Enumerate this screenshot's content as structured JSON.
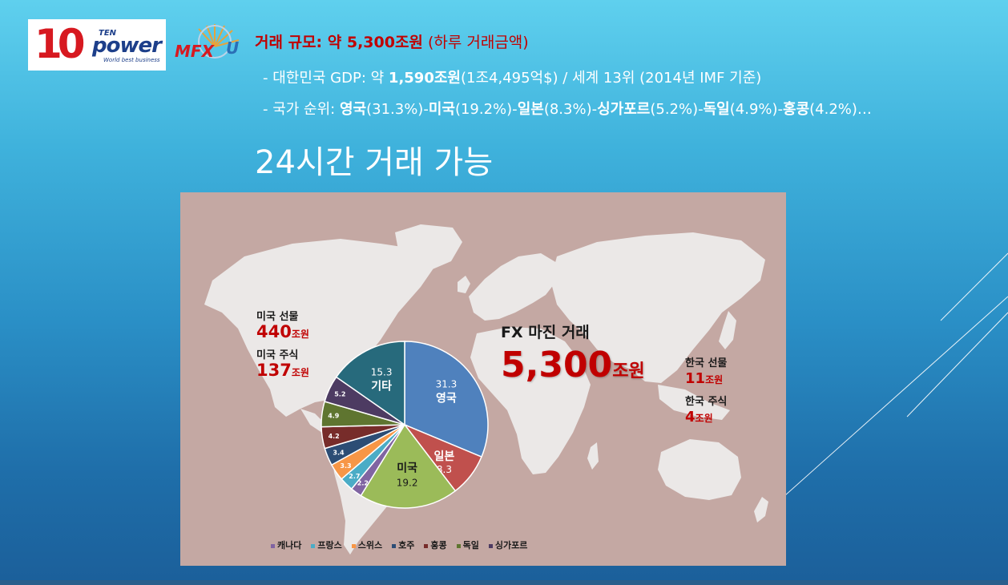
{
  "logos": {
    "ten_power": {
      "ten": "10",
      "ten_small": "TEN",
      "power": "power",
      "tagline": "World best business"
    },
    "mfx": {
      "text": "MFX",
      "suffix": "U"
    }
  },
  "header": {
    "line1_label": "거래 규모: 약 5,300조원",
    "line1_paren": " (하루 거래금액)",
    "line2_pre": "- 대한민국 GDP: 약 ",
    "line2_bold": "1,590조원",
    "line2_post": "(1조4,495억$) / 세계 13위 (2014년 IMF 기준)",
    "line3": [
      {
        "text": "- 국가 순위: ",
        "bold": false
      },
      {
        "text": "영국",
        "bold": true
      },
      {
        "text": "(31.3%)-",
        "bold": false
      },
      {
        "text": "미국",
        "bold": true
      },
      {
        "text": "(19.2%)-",
        "bold": false
      },
      {
        "text": "일본",
        "bold": true
      },
      {
        "text": "(8.3%)-",
        "bold": false
      },
      {
        "text": "싱가포르",
        "bold": true
      },
      {
        "text": "(5.2%)-",
        "bold": false
      },
      {
        "text": "독일",
        "bold": true
      },
      {
        "text": "(4.9%)-",
        "bold": false
      },
      {
        "text": "홍콩",
        "bold": true
      },
      {
        "text": "(4.2%)…",
        "bold": false
      }
    ],
    "headline": "24시간 거래 가능"
  },
  "map": {
    "usa_futures_label": "미국 선물",
    "usa_futures_value": "440",
    "usa_futures_unit": "조원",
    "usa_stocks_label": "미국 주식",
    "usa_stocks_value": "137",
    "usa_stocks_unit": "조원",
    "fx_title": "FX 마진 거래",
    "fx_value": "5,300",
    "fx_unit": "조원",
    "korea_futures_label": "한국 선물",
    "korea_futures_value": "11",
    "korea_futures_unit": "조원",
    "korea_stocks_label": "한국 주식",
    "korea_stocks_value": "4",
    "korea_stocks_unit": "조원"
  },
  "chart_data": {
    "type": "pie",
    "slices": [
      {
        "label": "영국",
        "value": 31.3,
        "value_text": "31.3",
        "color": "#4f81bd"
      },
      {
        "label": "일본",
        "value": 8.3,
        "value_text": "8.3",
        "color": "#c0504d"
      },
      {
        "label": "미국",
        "value": 19.2,
        "value_text": "19.2",
        "color": "#9bbb59"
      },
      {
        "label": "캐나다",
        "value": 2.2,
        "value_text": "2.2",
        "color": "#8064a2"
      },
      {
        "label": "프랑스",
        "value": 2.7,
        "value_text": "2.7",
        "color": "#4bacc6"
      },
      {
        "label": "스위스",
        "value": 3.3,
        "value_text": "3.3",
        "color": "#f79646"
      },
      {
        "label": "호주",
        "value": 3.4,
        "value_text": "3.4",
        "color": "#2c4d75"
      },
      {
        "label": "홍콩",
        "value": 4.2,
        "value_text": "4.2",
        "color": "#772c2a"
      },
      {
        "label": "독일",
        "value": 4.9,
        "value_text": "4.9",
        "color": "#5f7530"
      },
      {
        "label": "싱가포르",
        "value": 5.2,
        "value_text": "5.2",
        "color": "#4d3b62"
      },
      {
        "label": "기타",
        "value": 15.3,
        "value_text": "15.3",
        "color": "#276a7c"
      }
    ],
    "legend": [
      "캐나다",
      "프랑스",
      "스위스",
      "호주",
      "홍콩",
      "독일",
      "싱가포르"
    ],
    "legend_colors": [
      "#8064a2",
      "#4bacc6",
      "#f79646",
      "#2c4d75",
      "#772c2a",
      "#5f7530",
      "#4d3b62"
    ],
    "legend_placement": "bottom"
  }
}
